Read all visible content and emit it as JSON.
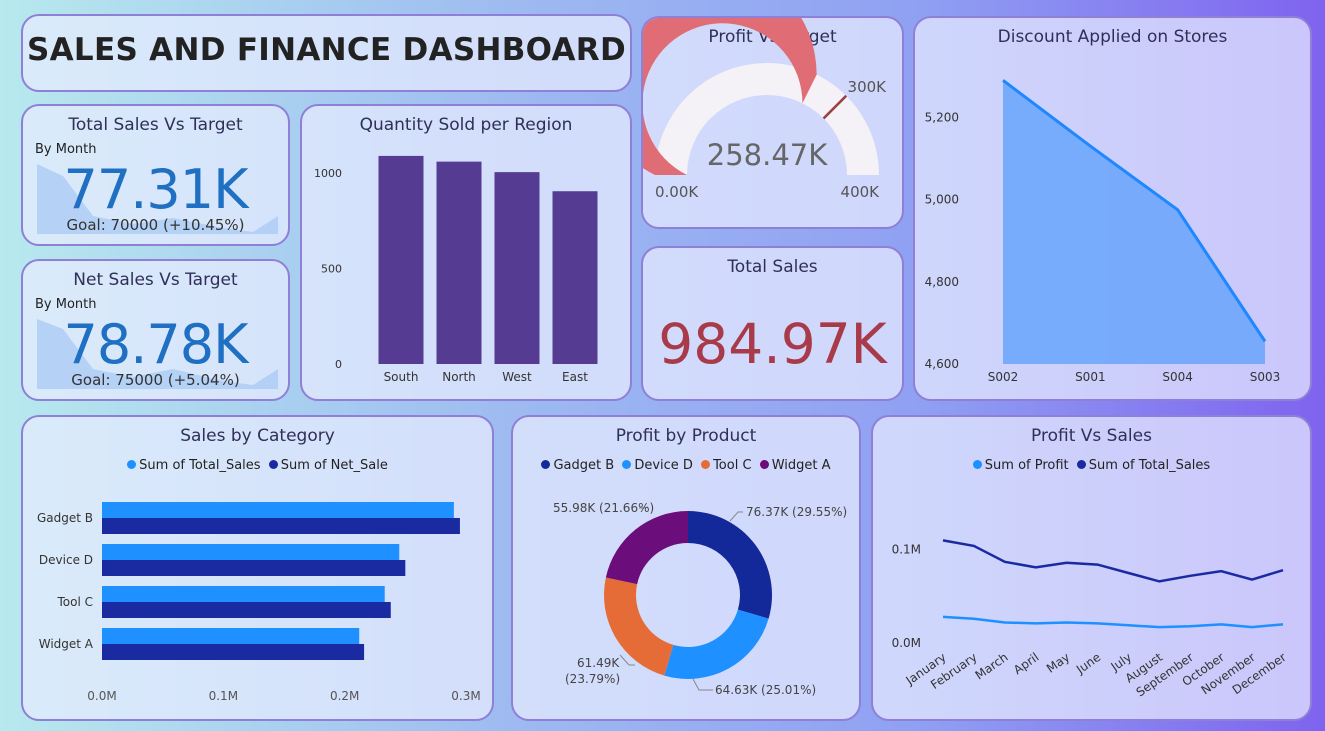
{
  "dashboard_title": "SALES AND FINANCE DASHBOARD",
  "kpi_total_sales": {
    "title": "Total Sales Vs Target",
    "subtitle": "By Month",
    "value": "77.31K",
    "goal": "Goal: 70000 (+10.45%)"
  },
  "kpi_net_sales": {
    "title": "Net Sales Vs Target",
    "subtitle": "By Month",
    "value": "78.78K",
    "goal": "Goal: 75000 (+5.04%)"
  },
  "total_sales_card": {
    "title": "Total Sales",
    "value": "984.97K",
    "value_color": "#a83a4a"
  },
  "colors": {
    "bar_purple": "#553b92",
    "gauge_fill": "#e06c75",
    "gauge_bg": "#f4f2f6",
    "gauge_target": "#9b4040",
    "area_fill": "#6ea6fb",
    "area_line": "#1e88ff",
    "light_blue": "#1e90ff",
    "dark_blue": "#1a2aa0",
    "donut_gadget": "#13299a",
    "donut_device": "#1e90ff",
    "donut_tool": "#e66c37",
    "donut_widget": "#6b0d7a"
  },
  "chart_data": [
    {
      "id": "gauge",
      "type": "gauge",
      "title": "Profit Vs Target",
      "value": 258.47,
      "value_label": "258.47K",
      "min": 0,
      "max": 400,
      "target": 300,
      "min_label": "0.00K",
      "max_label": "400K",
      "target_label": "300K"
    },
    {
      "id": "region",
      "type": "bar",
      "title": "Quantity Sold per Region",
      "categories": [
        "South",
        "North",
        "West",
        "East"
      ],
      "values": [
        1090,
        1060,
        1005,
        905
      ],
      "ylim": [
        0,
        1100
      ],
      "yticks": [
        0,
        500,
        1000
      ],
      "ytick_labels": [
        "0",
        "500",
        "1000"
      ],
      "xlabel": "",
      "ylabel": ""
    },
    {
      "id": "discount",
      "type": "area",
      "title": "Discount Applied on Stores",
      "categories": [
        "S002",
        "S001",
        "S004",
        "S003"
      ],
      "values": [
        5290,
        5130,
        4975,
        4655
      ],
      "ylim": [
        4600,
        5320
      ],
      "yticks": [
        4600,
        4800,
        5000,
        5200
      ],
      "ytick_labels": [
        "4,600",
        "4,800",
        "5,000",
        "5,200"
      ],
      "xlabel": "",
      "ylabel": ""
    },
    {
      "id": "category",
      "type": "bar",
      "orientation": "horizontal",
      "title": "Sales by Category",
      "categories": [
        "Gadget B",
        "Device D",
        "Tool C",
        "Widget A"
      ],
      "series": [
        {
          "name": "Sum of Total_Sales",
          "values": [
            0.29,
            0.245,
            0.233,
            0.212
          ]
        },
        {
          "name": "Sum of Net_Sale",
          "values": [
            0.295,
            0.25,
            0.238,
            0.216
          ]
        }
      ],
      "xlim": [
        0,
        0.3
      ],
      "xticks": [
        0,
        0.1,
        0.2,
        0.3
      ],
      "xtick_labels": [
        "0.0M",
        "0.1M",
        "0.2M",
        "0.3M"
      ],
      "legend": "top-center"
    },
    {
      "id": "donut",
      "type": "pie",
      "title": "Profit by Product",
      "legend": "top-center",
      "slices": [
        {
          "name": "Gadget B",
          "value": 76.37,
          "label": "76.37K (29.55%)"
        },
        {
          "name": "Device D",
          "value": 64.63,
          "label": "64.63K (25.01%)"
        },
        {
          "name": "Tool C",
          "value": 61.49,
          "label": "61.49K",
          "label2": "(23.79%)"
        },
        {
          "name": "Widget A",
          "value": 55.98,
          "label": "55.98K (21.66%)"
        }
      ]
    },
    {
      "id": "profit_sales",
      "type": "line",
      "title": "Profit Vs Sales",
      "categories": [
        "January",
        "February",
        "March",
        "April",
        "May",
        "June",
        "July",
        "August",
        "September",
        "October",
        "November",
        "December"
      ],
      "series": [
        {
          "name": "Sum of Profit",
          "values": [
            0.028,
            0.026,
            0.022,
            0.021,
            0.022,
            0.021,
            0.019,
            0.017,
            0.018,
            0.02,
            0.017,
            0.02
          ]
        },
        {
          "name": "Sum of Total_Sales",
          "values": [
            0.11,
            0.104,
            0.087,
            0.081,
            0.086,
            0.084,
            0.075,
            0.066,
            0.072,
            0.077,
            0.068,
            0.078
          ]
        }
      ],
      "ylim": [
        0,
        0.135
      ],
      "yticks": [
        0,
        0.1
      ],
      "ytick_labels": [
        "0.0M",
        "0.1M"
      ],
      "legend": "top-center"
    }
  ]
}
